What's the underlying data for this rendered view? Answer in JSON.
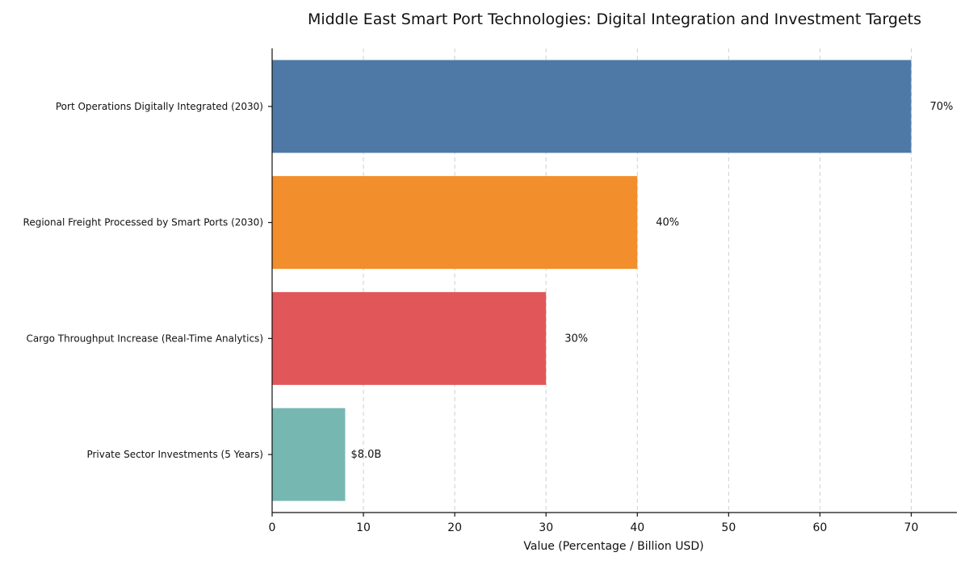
{
  "chart_data": {
    "type": "bar",
    "orientation": "horizontal",
    "title": "Middle East Smart Port Technologies: Digital Integration and Investment Targets",
    "xlabel": "Value (Percentage / Billion USD)",
    "ylabel": "",
    "xlim": [
      0,
      75
    ],
    "xticks": [
      0,
      10,
      20,
      30,
      40,
      50,
      60,
      70
    ],
    "grid": "x-dashed",
    "legend": "none",
    "bars": [
      {
        "category": "Port Operations Digitally Integrated (2030)",
        "value": 70,
        "label": "70%",
        "color": "#4e79a7"
      },
      {
        "category": "Regional Freight Processed by Smart Ports (2030)",
        "value": 40,
        "label": "40%",
        "color": "#f28e2b"
      },
      {
        "category": "Cargo Throughput Increase (Real-Time Analytics)",
        "value": 30,
        "label": "30%",
        "color": "#e15759"
      },
      {
        "category": "Private Sector Investments (5 Years)",
        "value": 8,
        "label": "$8.0B",
        "color": "#76b7b2"
      }
    ]
  }
}
